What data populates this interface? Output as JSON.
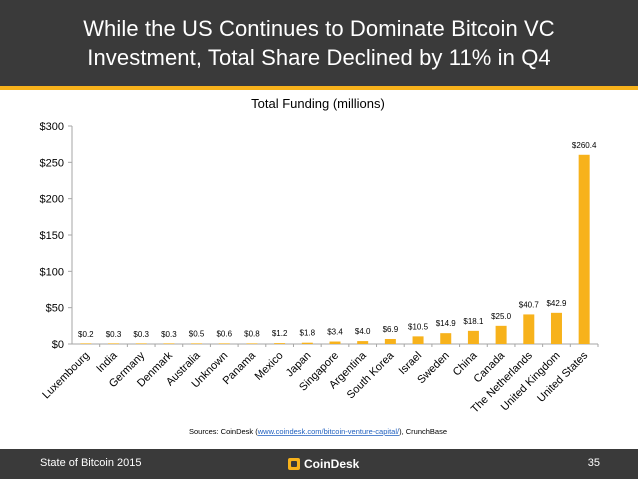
{
  "header": {
    "title_line1": "While the US Continues to Dominate Bitcoin VC",
    "title_line2": "Investment, Total Share Declined by 11% in Q4"
  },
  "footer": {
    "left_text": "State of Bitcoin 2015",
    "brand": "CoinDesk",
    "page_number": "35"
  },
  "colors": {
    "bar": "#f7b21b",
    "header_bg": "#3a3a3a",
    "accent": "#f7b21b"
  },
  "chart_data": {
    "type": "bar",
    "title": "Total Funding (millions)",
    "categories": [
      "Luxembourg",
      "India",
      "Germany",
      "Denmark",
      "Australia",
      "Unknown",
      "Panama",
      "Mexico",
      "Japan",
      "Singapore",
      "Argentina",
      "South Korea",
      "Israel",
      "Sweden",
      "China",
      "Canada",
      "The Netherlands",
      "United Kingdom",
      "United States"
    ],
    "values": [
      0.2,
      0.3,
      0.3,
      0.3,
      0.5,
      0.6,
      0.8,
      1.2,
      1.8,
      3.4,
      4.0,
      6.9,
      10.5,
      14.9,
      18.1,
      25.0,
      40.7,
      42.9,
      260.4
    ],
    "data_labels": [
      "$0.2",
      "$0.3",
      "$0.3",
      "$0.3",
      "$0.5",
      "$0.6",
      "$0.8",
      "$1.2",
      "$1.8",
      "$3.4",
      "$4.0",
      "$6.9",
      "$10.5",
      "$14.9",
      "$18.1",
      "$25.0",
      "$40.7",
      "$42.9",
      "$260.4"
    ],
    "y_ticks": [
      "$0",
      "$50",
      "$100",
      "$150",
      "$200",
      "$250",
      "$300"
    ],
    "ylim": [
      0,
      300
    ],
    "xlabel": "",
    "ylabel": "",
    "grid": false,
    "source_prefix": "Sources: CoinDesk (",
    "source_link": "www.coindesk.com/bitcoin-venture-capital/",
    "source_suffix": "), CrunchBase"
  }
}
